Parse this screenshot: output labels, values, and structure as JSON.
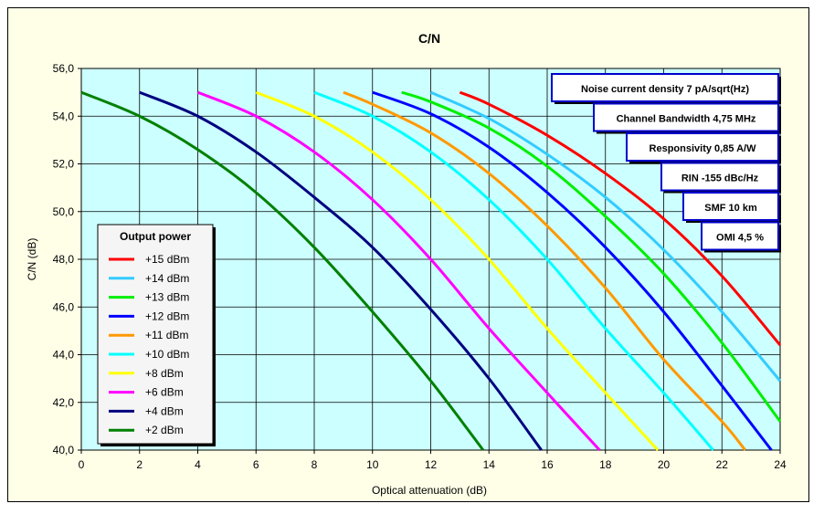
{
  "chart_data": {
    "type": "line",
    "title": "C/N",
    "xlabel": "Optical attenuation (dB)",
    "ylabel": "C/N (dB)",
    "xlim": [
      0,
      24
    ],
    "ylim": [
      40,
      56
    ],
    "x_ticks": [
      "0",
      "2",
      "4",
      "6",
      "8",
      "10",
      "12",
      "14",
      "16",
      "18",
      "20",
      "22",
      "24"
    ],
    "y_ticks": [
      "40,0",
      "42,0",
      "44,0",
      "46,0",
      "48,0",
      "50,0",
      "52,0",
      "54,0",
      "56,0"
    ],
    "grid": true,
    "plot_background": "#ccffff",
    "legend_title": "Output power",
    "legend_position": "left",
    "series": [
      {
        "name": "+15 dBm",
        "color": "#ff0000",
        "points": [
          [
            13,
            55.0
          ],
          [
            14,
            54.5
          ],
          [
            16,
            53.2
          ],
          [
            18,
            51.6
          ],
          [
            20,
            49.7
          ],
          [
            22,
            47.3
          ],
          [
            24,
            44.4
          ]
        ]
      },
      {
        "name": "+14 dBm",
        "color": "#33ccff",
        "points": [
          [
            12,
            55.0
          ],
          [
            14,
            53.9
          ],
          [
            16,
            52.4
          ],
          [
            18,
            50.6
          ],
          [
            20,
            48.4
          ],
          [
            22,
            45.8
          ],
          [
            24,
            42.9
          ]
        ]
      },
      {
        "name": "+13 dBm",
        "color": "#00ee00",
        "points": [
          [
            11,
            55.0
          ],
          [
            12,
            54.6
          ],
          [
            14,
            53.5
          ],
          [
            16,
            51.9
          ],
          [
            18,
            49.8
          ],
          [
            20,
            47.4
          ],
          [
            22,
            44.5
          ],
          [
            24,
            41.2
          ]
        ]
      },
      {
        "name": "+12 dBm",
        "color": "#0000ff",
        "points": [
          [
            10,
            55.0
          ],
          [
            12,
            54.1
          ],
          [
            14,
            52.7
          ],
          [
            16,
            50.8
          ],
          [
            18,
            48.5
          ],
          [
            20,
            45.8
          ],
          [
            22,
            42.7
          ],
          [
            23.7,
            40.0
          ]
        ]
      },
      {
        "name": "+11 dBm",
        "color": "#ff9900",
        "points": [
          [
            9,
            55.0
          ],
          [
            10,
            54.5
          ],
          [
            12,
            53.3
          ],
          [
            14,
            51.6
          ],
          [
            16,
            49.4
          ],
          [
            18,
            46.8
          ],
          [
            20,
            43.8
          ],
          [
            22,
            41.2
          ],
          [
            22.8,
            40.0
          ]
        ]
      },
      {
        "name": "+10 dBm",
        "color": "#00ffff",
        "points": [
          [
            8,
            55.0
          ],
          [
            10,
            54.0
          ],
          [
            12,
            52.5
          ],
          [
            14,
            50.5
          ],
          [
            16,
            48.0
          ],
          [
            18,
            45.1
          ],
          [
            20,
            42.4
          ],
          [
            21.7,
            40.0
          ]
        ]
      },
      {
        "name": "+8 dBm",
        "color": "#ffff00",
        "points": [
          [
            6,
            55.0
          ],
          [
            8,
            54.0
          ],
          [
            10,
            52.5
          ],
          [
            12,
            50.5
          ],
          [
            14,
            48.0
          ],
          [
            16,
            45.1
          ],
          [
            18,
            42.4
          ],
          [
            19.8,
            40.0
          ]
        ]
      },
      {
        "name": "+6 dBm",
        "color": "#ff00ff",
        "points": [
          [
            4,
            55.0
          ],
          [
            6,
            54.0
          ],
          [
            8,
            52.5
          ],
          [
            10,
            50.5
          ],
          [
            12,
            48.0
          ],
          [
            14,
            45.1
          ],
          [
            16,
            42.4
          ],
          [
            17.8,
            40.0
          ]
        ]
      },
      {
        "name": "+4 dBm",
        "color": "#000080",
        "points": [
          [
            2,
            55.0
          ],
          [
            4,
            54.0
          ],
          [
            6,
            52.5
          ],
          [
            8,
            50.6
          ],
          [
            10,
            48.5
          ],
          [
            12,
            45.9
          ],
          [
            14,
            43.0
          ],
          [
            15.8,
            40.0
          ]
        ]
      },
      {
        "name": "+2 dBm",
        "color": "#008000",
        "points": [
          [
            0,
            55.0
          ],
          [
            2,
            54.0
          ],
          [
            4,
            52.6
          ],
          [
            6,
            50.8
          ],
          [
            8,
            48.5
          ],
          [
            10,
            45.8
          ],
          [
            12,
            42.9
          ],
          [
            13.8,
            40.0
          ]
        ]
      }
    ],
    "annotations": [
      "Noise current density 7 pA/sqrt(Hz)",
      "Channel Bandwidth 4,75 MHz",
      "Responsivity 0,85 A/W",
      "RIN  -155 dBc/Hz",
      "SMF 10 km",
      "OMI 4,5 %"
    ]
  }
}
